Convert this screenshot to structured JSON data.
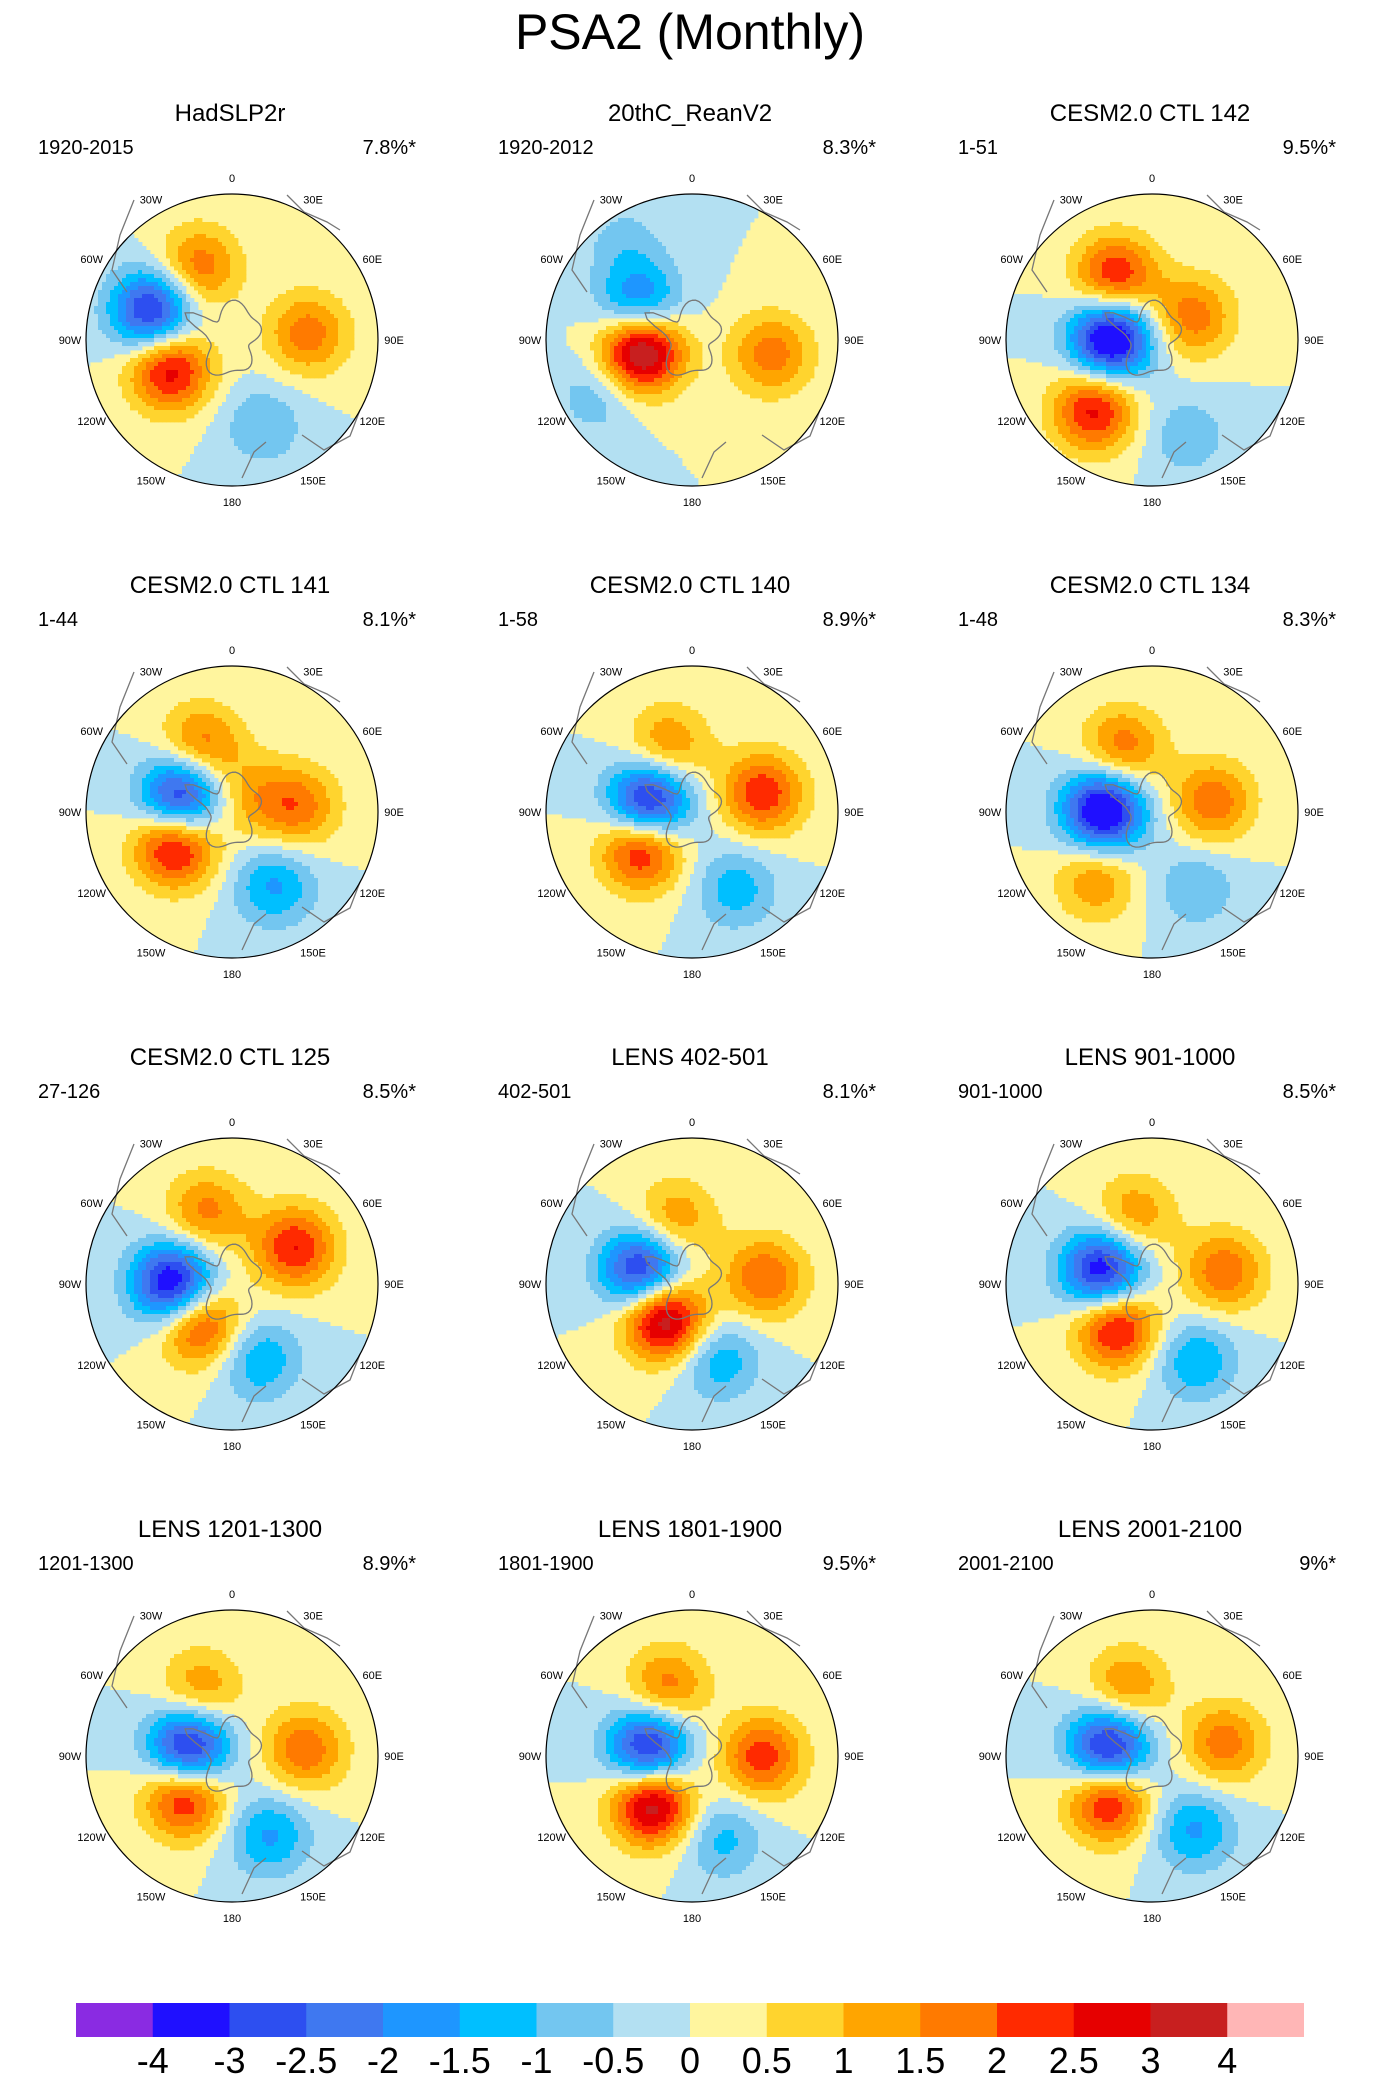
{
  "figure_title": "PSA2 (Monthly)",
  "colorbar": {
    "ticks": [
      "-4",
      "-3",
      "-2.5",
      "-2",
      "-1.5",
      "-1",
      "-0.5",
      "0",
      "0.5",
      "1",
      "1.5",
      "2",
      "2.5",
      "3",
      "4"
    ],
    "colors": [
      "#8a2be2",
      "#1f10ff",
      "#2d4ff0",
      "#3f78f0",
      "#1e96ff",
      "#00bfff",
      "#73c6f0",
      "#b3e0f2",
      "#fff59e",
      "#ffd42e",
      "#ffa500",
      "#ff7a00",
      "#ff2a00",
      "#e60000",
      "#c81f1f",
      "#ffb6b6"
    ]
  },
  "longitude_labels": [
    "0",
    "30E",
    "60E",
    "90E",
    "120E",
    "150E",
    "180",
    "150W",
    "120W",
    "90W",
    "60W",
    "30W"
  ],
  "chart_data": [
    {
      "type": "heatmap",
      "title": "HadSLP2r",
      "period": "1920-2015",
      "variance": "7.8%*",
      "centers": [
        {
          "lon": -70,
          "r": 0.58,
          "amp": -3.4
        },
        {
          "lon": -115,
          "r": 0.47,
          "amp": 2.9
        },
        {
          "lon": -25,
          "r": 0.55,
          "amp": 1.9
        },
        {
          "lon": 85,
          "r": 0.52,
          "amp": 1.8
        },
        {
          "lon": 160,
          "r": 0.62,
          "amp": -1.0
        }
      ]
    },
    {
      "type": "heatmap",
      "title": "20thC_ReanV2",
      "period": "1920-2012",
      "variance": "8.3%*",
      "centers": [
        {
          "lon": -58,
          "r": 0.42,
          "amp": -2.5
        },
        {
          "lon": -100,
          "r": 0.35,
          "amp": 4.3
        },
        {
          "lon": -120,
          "r": 0.75,
          "amp": -0.9
        },
        {
          "lon": 100,
          "r": 0.55,
          "amp": 1.8
        },
        {
          "lon": -35,
          "r": 0.8,
          "amp": -0.7
        }
      ]
    },
    {
      "type": "heatmap",
      "title": "CESM2.0 CTL 142",
      "period": "1-51",
      "variance": "9.5%*",
      "centers": [
        {
          "lon": -88,
          "r": 0.28,
          "amp": -4.2
        },
        {
          "lon": -140,
          "r": 0.62,
          "amp": 2.7
        },
        {
          "lon": -30,
          "r": 0.5,
          "amp": 2.6
        },
        {
          "lon": 60,
          "r": 0.32,
          "amp": 1.8
        },
        {
          "lon": 160,
          "r": 0.7,
          "amp": -0.9
        }
      ]
    },
    {
      "type": "heatmap",
      "title": "CESM2.0 CTL 141",
      "period": "1-44",
      "variance": "8.1%*",
      "centers": [
        {
          "lon": -73,
          "r": 0.36,
          "amp": -3.7
        },
        {
          "lon": -120,
          "r": 0.45,
          "amp": 3.1
        },
        {
          "lon": -25,
          "r": 0.5,
          "amp": 1.9
        },
        {
          "lon": 85,
          "r": 0.45,
          "amp": 1.8
        },
        {
          "lon": 150,
          "r": 0.58,
          "amp": -1.6
        },
        {
          "lon": 45,
          "r": 0.15,
          "amp": 1.0
        }
      ]
    },
    {
      "type": "heatmap",
      "title": "CESM2.0 CTL 140",
      "period": "1-58",
      "variance": "8.9%*",
      "centers": [
        {
          "lon": -78,
          "r": 0.3,
          "amp": -3.9
        },
        {
          "lon": -125,
          "r": 0.42,
          "amp": 3.0
        },
        {
          "lon": -20,
          "r": 0.48,
          "amp": 1.6
        },
        {
          "lon": 75,
          "r": 0.5,
          "amp": 2.4
        },
        {
          "lon": 150,
          "r": 0.6,
          "amp": -1.3
        }
      ]
    },
    {
      "type": "heatmap",
      "title": "CESM2.0 CTL 134",
      "period": "1-48",
      "variance": "8.3%*",
      "centers": [
        {
          "lon": -88,
          "r": 0.33,
          "amp": -4.1
        },
        {
          "lon": -140,
          "r": 0.6,
          "amp": 1.5
        },
        {
          "lon": -25,
          "r": 0.48,
          "amp": 1.9
        },
        {
          "lon": 80,
          "r": 0.42,
          "amp": 1.9
        },
        {
          "lon": 150,
          "r": 0.6,
          "amp": -1.0
        }
      ]
    },
    {
      "type": "heatmap",
      "title": "CESM2.0 CTL 125",
      "period": "27-126",
      "variance": "8.5%*",
      "centers": [
        {
          "lon": -90,
          "r": 0.4,
          "amp": -4.0
        },
        {
          "lon": -140,
          "r": 0.35,
          "amp": 2.7
        },
        {
          "lon": -20,
          "r": 0.52,
          "amp": 1.7
        },
        {
          "lon": 60,
          "r": 0.5,
          "amp": 2.5
        },
        {
          "lon": 160,
          "r": 0.55,
          "amp": -1.5
        }
      ]
    },
    {
      "type": "heatmap",
      "title": "LENS 402-501",
      "period": "402-501",
      "variance": "8.1%*",
      "centers": [
        {
          "lon": -75,
          "r": 0.35,
          "amp": -3.6
        },
        {
          "lon": -140,
          "r": 0.3,
          "amp": 3.8
        },
        {
          "lon": -15,
          "r": 0.45,
          "amp": 1.5
        },
        {
          "lon": 85,
          "r": 0.5,
          "amp": 2.0
        },
        {
          "lon": 160,
          "r": 0.55,
          "amp": -1.4
        }
      ]
    },
    {
      "type": "heatmap",
      "title": "LENS 901-1000",
      "period": "901-1000",
      "variance": "8.5%*",
      "centers": [
        {
          "lon": -75,
          "r": 0.35,
          "amp": -3.7
        },
        {
          "lon": -140,
          "r": 0.38,
          "amp": 2.9
        },
        {
          "lon": -15,
          "r": 0.48,
          "amp": 1.5
        },
        {
          "lon": 80,
          "r": 0.5,
          "amp": 1.9
        },
        {
          "lon": 150,
          "r": 0.6,
          "amp": -1.5
        }
      ]
    },
    {
      "type": "heatmap",
      "title": "LENS 1201-1300",
      "period": "1201-1300",
      "variance": "8.9%*",
      "centers": [
        {
          "lon": -80,
          "r": 0.3,
          "amp": -3.8
        },
        {
          "lon": -130,
          "r": 0.42,
          "amp": 2.9
        },
        {
          "lon": -25,
          "r": 0.5,
          "amp": 1.5
        },
        {
          "lon": 85,
          "r": 0.5,
          "amp": 1.9
        },
        {
          "lon": 155,
          "r": 0.6,
          "amp": -1.6
        }
      ]
    },
    {
      "type": "heatmap",
      "title": "LENS 1801-1900",
      "period": "1801-1900",
      "variance": "9.5%*",
      "centers": [
        {
          "lon": -80,
          "r": 0.3,
          "amp": -3.6
        },
        {
          "lon": -140,
          "r": 0.42,
          "amp": 3.6
        },
        {
          "lon": -20,
          "r": 0.5,
          "amp": 1.8
        },
        {
          "lon": 90,
          "r": 0.48,
          "amp": 2.3
        },
        {
          "lon": 160,
          "r": 0.6,
          "amp": -1.2
        }
      ]
    },
    {
      "type": "heatmap",
      "title": "LENS 2001-2100",
      "period": "2001-2100",
      "variance": "9%*",
      "centers": [
        {
          "lon": -80,
          "r": 0.3,
          "amp": -3.7
        },
        {
          "lon": -135,
          "r": 0.42,
          "amp": 2.9
        },
        {
          "lon": -20,
          "r": 0.5,
          "amp": 1.6
        },
        {
          "lon": 80,
          "r": 0.5,
          "amp": 1.8
        },
        {
          "lon": 150,
          "r": 0.58,
          "amp": -1.6
        }
      ]
    }
  ]
}
